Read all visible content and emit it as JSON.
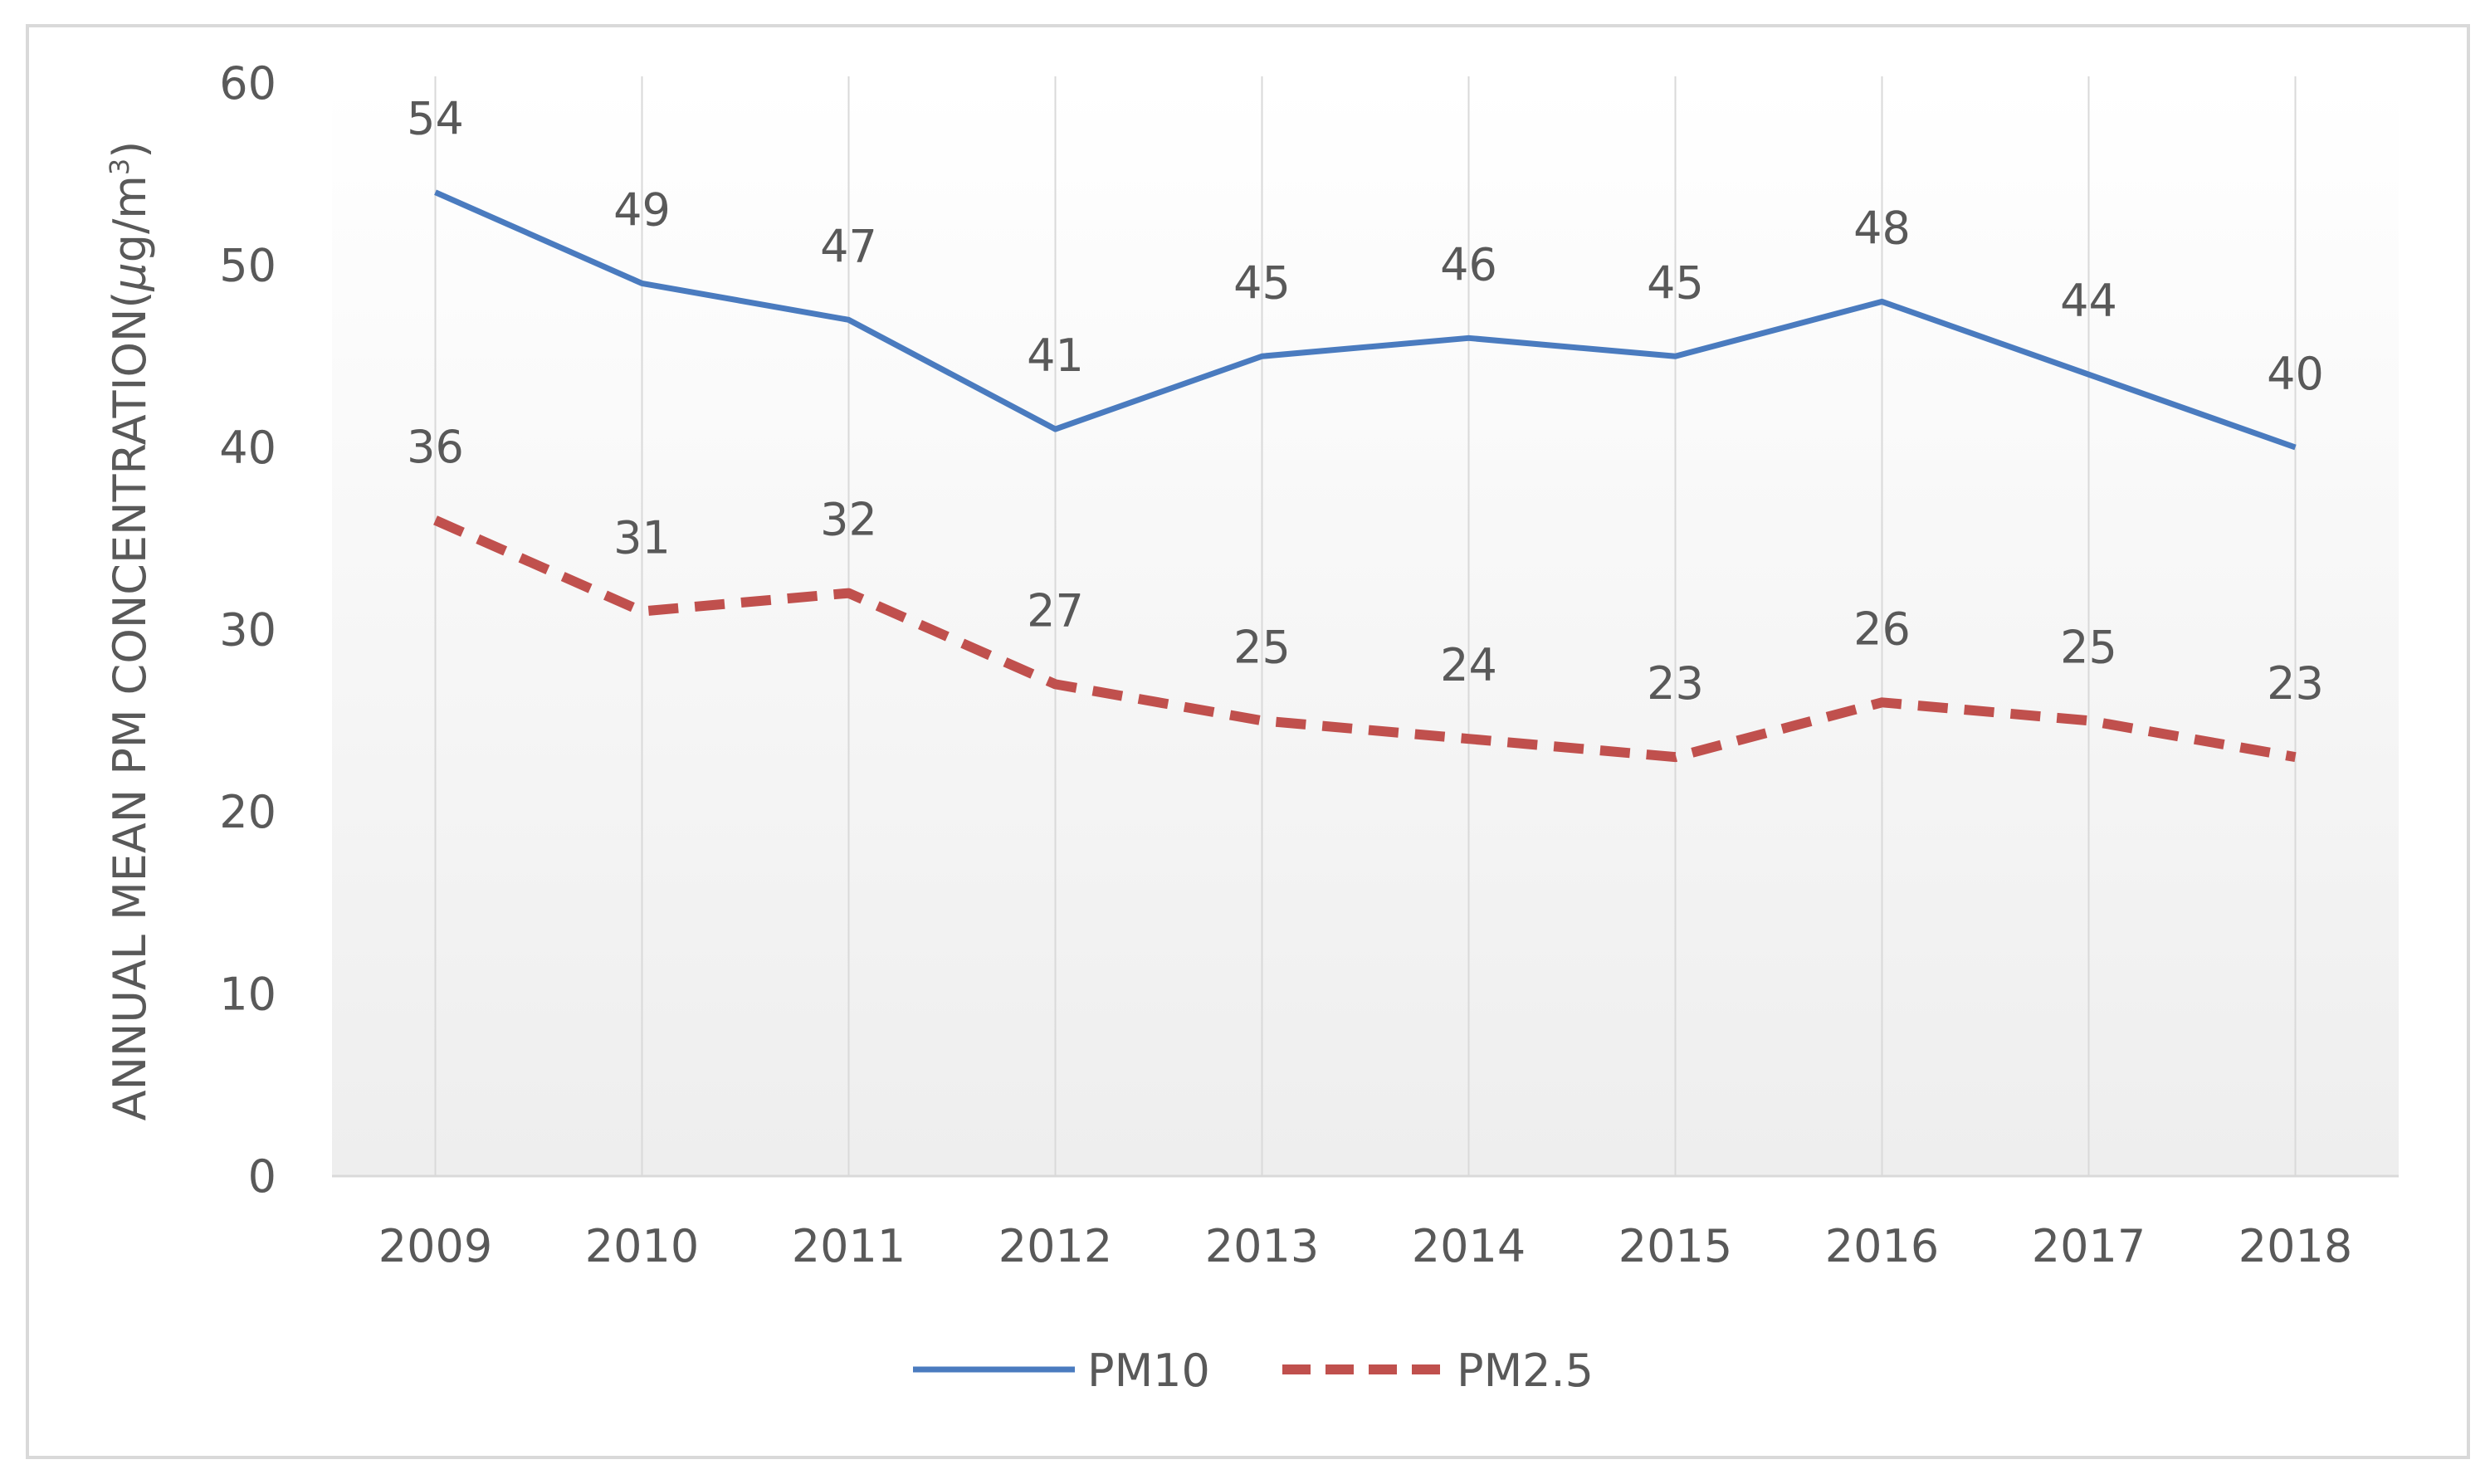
{
  "chart_data": {
    "type": "line",
    "title": "",
    "xlabel": "",
    "ylabel_main": "ANNUAL MEAN PM CONCENTRATION(",
    "ylabel_unit_mu": "µ",
    "ylabel_unit_g": "g/m",
    "ylabel_unit_sup": "3",
    "ylabel_close": ")",
    "ylim": [
      0,
      60
    ],
    "yticks": [
      0,
      10,
      20,
      30,
      40,
      50,
      60
    ],
    "categories": [
      "2009",
      "2010",
      "2011",
      "2012",
      "2013",
      "2014",
      "2015",
      "2016",
      "2017",
      "2018"
    ],
    "grid": "vertical",
    "legend_position": "bottom-center",
    "series": [
      {
        "name": "PM10",
        "values": [
          54,
          49,
          47,
          41,
          45,
          46,
          45,
          48,
          44,
          40
        ],
        "color": "#4a7bbf",
        "style": "solid"
      },
      {
        "name": "PM2.5",
        "values": [
          36,
          31,
          32,
          27,
          25,
          24,
          23,
          26,
          25,
          23
        ],
        "color": "#c0504d",
        "style": "dashed"
      }
    ]
  },
  "colors": {
    "frame_border": "#d9d9d9",
    "axis_line": "#d9d9d9",
    "grid_line": "#d9d9d9",
    "text": "#595959",
    "plot_gradient_top": "#ffffff",
    "plot_gradient_bottom": "#eeeeee"
  }
}
